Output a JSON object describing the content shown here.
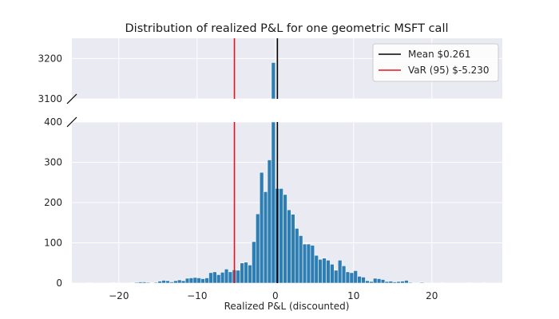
{
  "chart_data": {
    "type": "bar",
    "title": "Distribution of realized P&L for one geometric MSFT call",
    "xlabel": "Realized P&L (discounted)",
    "ylabel": "",
    "broken_y_axis": true,
    "xlim": [
      -26,
      29
    ],
    "ylim_lower": [
      0,
      400
    ],
    "ylim_upper": [
      3100,
      3250
    ],
    "x_ticks": [
      -20,
      -10,
      0,
      10,
      20
    ],
    "y_ticks_lower": [
      0,
      100,
      200,
      300,
      400
    ],
    "y_ticks_upper": [
      3100,
      3200
    ],
    "grid": true,
    "legend_position": "top-right",
    "bar_color": "#2f7eb3",
    "bin_width": 0.5,
    "bins": [
      {
        "x": -24.0,
        "count": 1
      },
      {
        "x": -21.0,
        "count": 1
      },
      {
        "x": -18.5,
        "count": 1
      },
      {
        "x": -18.0,
        "count": 2
      },
      {
        "x": -17.5,
        "count": 3
      },
      {
        "x": -17.0,
        "count": 3
      },
      {
        "x": -16.5,
        "count": 2
      },
      {
        "x": -16.0,
        "count": 1
      },
      {
        "x": -15.5,
        "count": 2
      },
      {
        "x": -15.0,
        "count": 5
      },
      {
        "x": -14.5,
        "count": 7
      },
      {
        "x": -14.0,
        "count": 6
      },
      {
        "x": -13.5,
        "count": 3
      },
      {
        "x": -13.0,
        "count": 6
      },
      {
        "x": -12.5,
        "count": 8
      },
      {
        "x": -12.0,
        "count": 6
      },
      {
        "x": -11.5,
        "count": 12
      },
      {
        "x": -11.0,
        "count": 13
      },
      {
        "x": -10.5,
        "count": 14
      },
      {
        "x": -10.0,
        "count": 13
      },
      {
        "x": -9.5,
        "count": 11
      },
      {
        "x": -9.0,
        "count": 13
      },
      {
        "x": -8.5,
        "count": 26
      },
      {
        "x": -8.0,
        "count": 28
      },
      {
        "x": -7.5,
        "count": 21
      },
      {
        "x": -7.0,
        "count": 27
      },
      {
        "x": -6.5,
        "count": 35
      },
      {
        "x": -6.0,
        "count": 28
      },
      {
        "x": -5.5,
        "count": 33
      },
      {
        "x": -5.0,
        "count": 32
      },
      {
        "x": -4.5,
        "count": 50
      },
      {
        "x": -4.0,
        "count": 52
      },
      {
        "x": -3.5,
        "count": 45
      },
      {
        "x": -3.0,
        "count": 103
      },
      {
        "x": -2.5,
        "count": 172
      },
      {
        "x": -2.0,
        "count": 275
      },
      {
        "x": -1.5,
        "count": 227
      },
      {
        "x": -1.0,
        "count": 306
      },
      {
        "x": -0.5,
        "count": 3190
      },
      {
        "x": 0.0,
        "count": 235
      },
      {
        "x": 0.5,
        "count": 235
      },
      {
        "x": 1.0,
        "count": 220
      },
      {
        "x": 1.5,
        "count": 182
      },
      {
        "x": 2.0,
        "count": 171
      },
      {
        "x": 2.5,
        "count": 136
      },
      {
        "x": 3.0,
        "count": 118
      },
      {
        "x": 3.5,
        "count": 97
      },
      {
        "x": 4.0,
        "count": 97
      },
      {
        "x": 4.5,
        "count": 94
      },
      {
        "x": 5.0,
        "count": 69
      },
      {
        "x": 5.5,
        "count": 59
      },
      {
        "x": 6.0,
        "count": 62
      },
      {
        "x": 6.5,
        "count": 57
      },
      {
        "x": 7.0,
        "count": 47
      },
      {
        "x": 7.5,
        "count": 32
      },
      {
        "x": 8.0,
        "count": 57
      },
      {
        "x": 8.5,
        "count": 43
      },
      {
        "x": 9.0,
        "count": 28
      },
      {
        "x": 9.5,
        "count": 26
      },
      {
        "x": 10.0,
        "count": 31
      },
      {
        "x": 10.5,
        "count": 17
      },
      {
        "x": 11.0,
        "count": 15
      },
      {
        "x": 11.5,
        "count": 6
      },
      {
        "x": 12.0,
        "count": 4
      },
      {
        "x": 12.5,
        "count": 12
      },
      {
        "x": 13.0,
        "count": 11
      },
      {
        "x": 13.5,
        "count": 9
      },
      {
        "x": 14.0,
        "count": 4
      },
      {
        "x": 14.5,
        "count": 5
      },
      {
        "x": 15.0,
        "count": 3
      },
      {
        "x": 15.5,
        "count": 4
      },
      {
        "x": 16.0,
        "count": 5
      },
      {
        "x": 16.5,
        "count": 7
      },
      {
        "x": 17.0,
        "count": 2
      },
      {
        "x": 18.5,
        "count": 2
      },
      {
        "x": 21.0,
        "count": 1
      },
      {
        "x": 24.5,
        "count": 1
      },
      {
        "x": 26.5,
        "count": 1
      }
    ],
    "vlines": [
      {
        "name": "Mean $0.261",
        "x": 0.261,
        "color": "#000000"
      },
      {
        "name": "VaR (95) $-5.230",
        "x": -5.23,
        "color": "#e8141c"
      }
    ]
  }
}
